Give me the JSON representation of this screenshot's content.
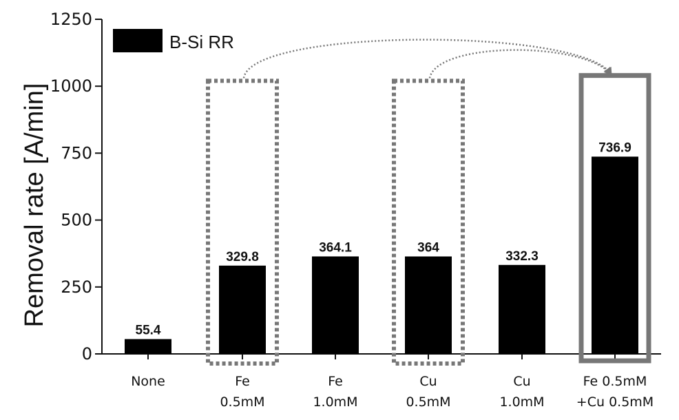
{
  "chart_data": {
    "type": "bar",
    "categories": [
      [
        "None"
      ],
      [
        "Fe",
        "0.5mM"
      ],
      [
        "Fe",
        "1.0mM"
      ],
      [
        "Cu",
        "0.5mM"
      ],
      [
        "Cu",
        "1.0mM"
      ],
      [
        "Fe 0.5mM",
        "+Cu 0.5mM"
      ]
    ],
    "series": [
      {
        "name": "B-Si RR",
        "values": [
          55.4,
          329.8,
          364.1,
          364,
          332.3,
          736.9
        ]
      }
    ],
    "value_labels": [
      "55.4",
      "329.8",
      "364.1",
      "364",
      "332.3",
      "736.9"
    ],
    "ylabel": "Removal rate [A/min]",
    "xlabel": "",
    "ylim": [
      0,
      1250
    ],
    "yticks": [
      0,
      250,
      500,
      750,
      1000,
      1250
    ],
    "legend_position": "top-left",
    "grid": false,
    "highlighted_categories": {
      "dashed_boxes": [
        1,
        3
      ],
      "solid_box": 5,
      "arrows_from": [
        1,
        3
      ],
      "arrow_to": 5
    },
    "colors": {
      "bar": "#000000",
      "box": "#777777",
      "axis": "#111111"
    }
  }
}
